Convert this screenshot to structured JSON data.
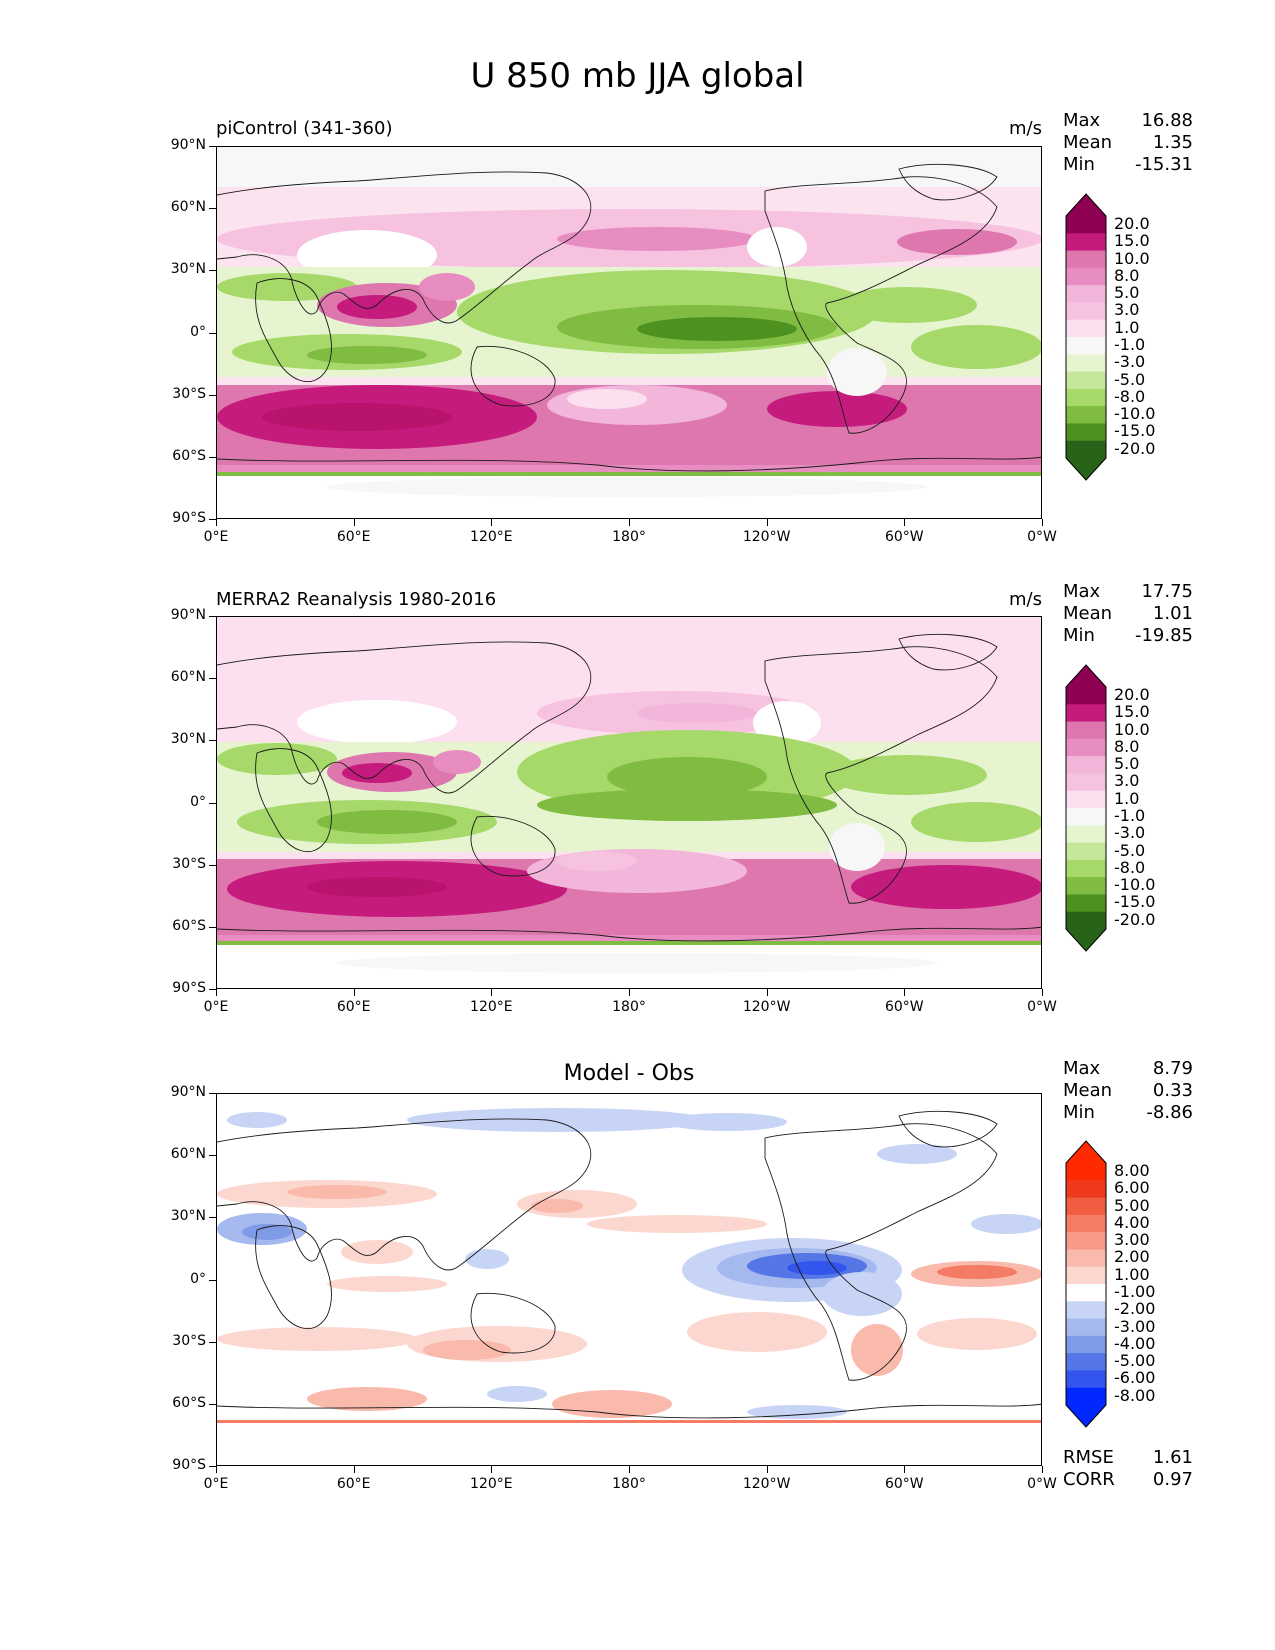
{
  "figure": {
    "title": "U 850 mb JJA global"
  },
  "axes": {
    "lat_labels": [
      "90°N",
      "60°N",
      "30°N",
      "0°",
      "30°S",
      "60°S",
      "90°S"
    ],
    "lon_labels": [
      "0°E",
      "60°E",
      "120°E",
      "180°",
      "120°W",
      "60°W",
      "0°W"
    ]
  },
  "panels": [
    {
      "title_left": "piControl (341-360)",
      "title_right": "m/s",
      "stats": [
        {
          "label": "Max",
          "value": "16.88"
        },
        {
          "label": "Mean",
          "value": "1.35"
        },
        {
          "label": "Min",
          "value": "-15.31"
        }
      ],
      "colorbar_labels": [
        "20.0",
        "15.0",
        "10.0",
        "8.0",
        "5.0",
        "3.0",
        "1.0",
        "-1.0",
        "-3.0",
        "-5.0",
        "-8.0",
        "-10.0",
        "-15.0",
        "-20.0"
      ]
    },
    {
      "title_left": "MERRA2 Reanalysis 1980-2016",
      "title_right": "m/s",
      "stats": [
        {
          "label": "Max",
          "value": "17.75"
        },
        {
          "label": "Mean",
          "value": "1.01"
        },
        {
          "label": "Min",
          "value": "-19.85"
        }
      ],
      "colorbar_labels": [
        "20.0",
        "15.0",
        "10.0",
        "8.0",
        "5.0",
        "3.0",
        "1.0",
        "-1.0",
        "-3.0",
        "-5.0",
        "-8.0",
        "-10.0",
        "-15.0",
        "-20.0"
      ]
    },
    {
      "title_center": "Model - Obs",
      "stats": [
        {
          "label": "Max",
          "value": "8.79"
        },
        {
          "label": "Mean",
          "value": "0.33"
        },
        {
          "label": "Min",
          "value": "-8.86"
        }
      ],
      "colorbar_labels": [
        "8.00",
        "6.00",
        "5.00",
        "4.00",
        "3.00",
        "2.00",
        "1.00",
        "-1.00",
        "-2.00",
        "-3.00",
        "-4.00",
        "-5.00",
        "-6.00",
        "-8.00"
      ],
      "metrics": [
        {
          "label": "RMSE",
          "value": "1.61"
        },
        {
          "label": "CORR",
          "value": "0.97"
        }
      ]
    }
  ],
  "colors": {
    "piyg": [
      "#276419",
      "#4d9221",
      "#7fbc41",
      "#a6d96a",
      "#c5e79b",
      "#e6f5d0",
      "#f7f7f7",
      "#fde0ef",
      "#f6c2df",
      "#f1b6da",
      "#e88dc1",
      "#de77ae",
      "#c51b7d",
      "#8e0152"
    ],
    "bwr": [
      "#0028ff",
      "#3355ee",
      "#5577e6",
      "#7e9be8",
      "#a5b9ef",
      "#c8d4f6",
      "#ffffff",
      "#fcd7cf",
      "#f9b9ab",
      "#f79a88",
      "#f47b64",
      "#f25c41",
      "#ef3a1d",
      "#ff2a00"
    ]
  }
}
